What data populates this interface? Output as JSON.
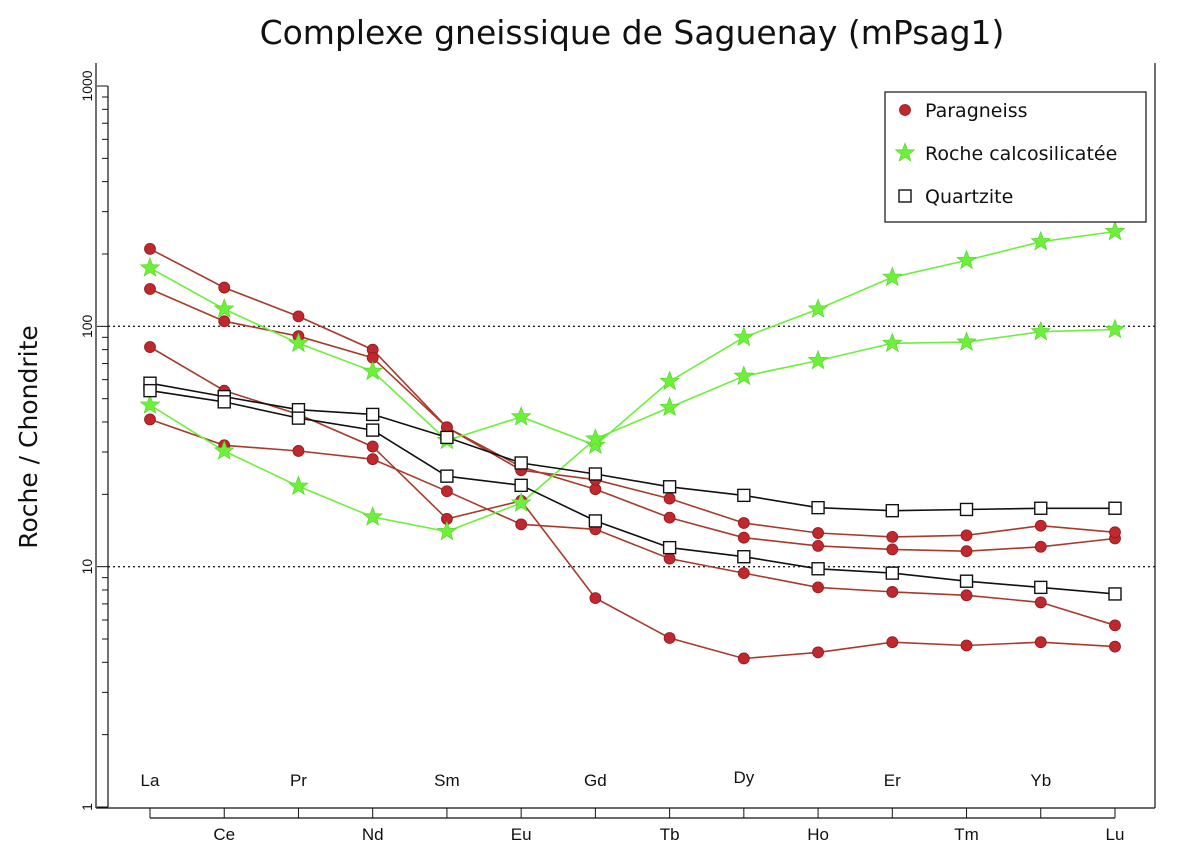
{
  "chart_data": {
    "type": "line",
    "title": "Complexe gneissique de Saguenay (mPsag1)",
    "xlabel": "",
    "ylabel": "Roche / Chondrite",
    "y_scale": "log",
    "ylim": [
      1,
      1000
    ],
    "y_ticks": [
      "1",
      "10",
      "100",
      "1000"
    ],
    "reference_lines": [
      10,
      100
    ],
    "categories": [
      "La",
      "Ce",
      "Pr",
      "Nd",
      "Sm",
      "Eu",
      "Gd",
      "Tb",
      "Dy",
      "Ho",
      "Er",
      "Tm",
      "Yb",
      "Lu"
    ],
    "legend": {
      "position": "top-right",
      "entries": [
        {
          "label": "Paragneiss",
          "marker": "circle",
          "color": "#c0282d"
        },
        {
          "label": "Roche calcosilicatée",
          "marker": "star",
          "color": "#6cf03c"
        },
        {
          "label": "Quartzite",
          "marker": "square",
          "color": "#111111"
        }
      ]
    },
    "groups": [
      {
        "label": "Paragneiss",
        "marker": "circle",
        "color": "#c0282d",
        "line_color": "#a83a2c",
        "series": [
          {
            "values": [
              210,
              145,
              110,
              80,
              38,
              26,
              21,
              16,
              13.2,
              12.2,
              11.8,
              11.6,
              12.1,
              13.1
            ]
          },
          {
            "values": [
              143,
              105,
              91,
              74,
              38,
              25.2,
              23,
              19.2,
              15.2,
              13.8,
              13.3,
              13.5,
              14.8,
              13.9
            ]
          },
          {
            "values": [
              82,
              54,
              43,
              31.6,
              15.8,
              18.8,
              7.4,
              5.05,
              4.15,
              4.4,
              4.85,
              4.7,
              4.85,
              4.65
            ]
          },
          {
            "values": [
              41,
              32,
              30.3,
              28,
              20.6,
              15,
              14.3,
              10.8,
              9.4,
              8.2,
              7.85,
              7.6,
              7.1,
              5.7
            ]
          }
        ]
      },
      {
        "label": "Roche calcosilicatée",
        "marker": "star",
        "color": "#6cf03c",
        "line_color": "#6cf03c",
        "series": [
          {
            "values": [
              175,
              118,
              85,
              65,
              33.5,
              42,
              32,
              59,
              90,
              118,
              160,
              188,
              225,
              248
            ]
          },
          {
            "values": [
              47,
              30.3,
              21.6,
              16.1,
              14,
              18.4,
              34,
              46,
              62,
              72,
              85,
              86,
              95,
              97
            ]
          }
        ]
      },
      {
        "label": "Quartzite",
        "marker": "square",
        "color": "#111111",
        "line_color": "#111111",
        "series": [
          {
            "values": [
              58,
              51,
              45,
              43,
              34.5,
              27,
              24.3,
              21.5,
              19.8,
              17.6,
              17.1,
              17.3,
              17.5,
              17.5
            ]
          },
          {
            "values": [
              54,
              48.5,
              41.5,
              37,
              23.8,
              21.8,
              15.5,
              12,
              11,
              9.8,
              9.4,
              8.7,
              8.2,
              7.7
            ]
          }
        ]
      }
    ]
  }
}
